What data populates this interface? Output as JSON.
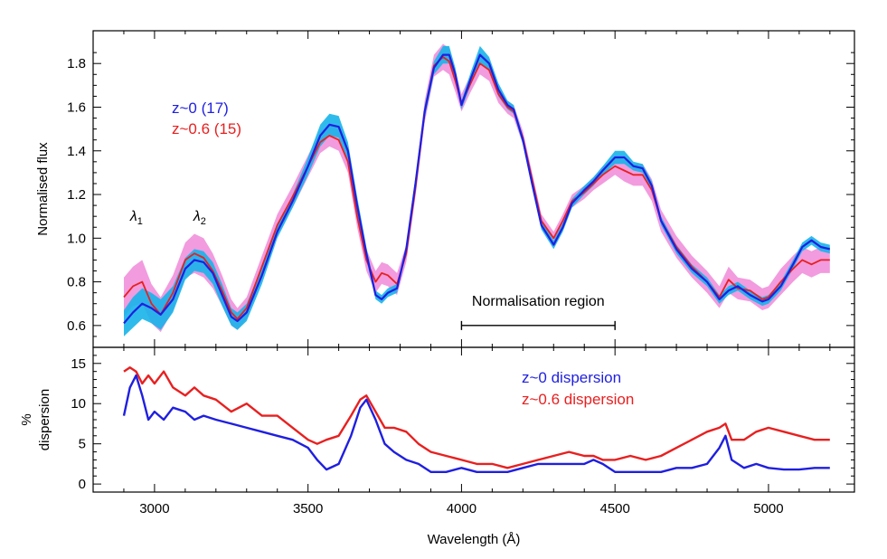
{
  "chart_data": [
    {
      "type": "line",
      "panel": "top",
      "ylabel": "Normalised flux",
      "xlim": [
        2800,
        5280
      ],
      "ylim": [
        0.5,
        1.95
      ],
      "x_ticks": [
        3000,
        3500,
        4000,
        4500,
        5000
      ],
      "y_ticks": [
        0.6,
        0.8,
        1.0,
        1.2,
        1.4,
        1.6,
        1.8
      ],
      "y_tick_labels": [
        "0.6",
        "0.8",
        "1.0",
        "1.2",
        "1.4",
        "1.6",
        "1.8"
      ],
      "legend": [
        {
          "text": "z~0 (17)",
          "color": "#1f1fe0"
        },
        {
          "text": "z~0.6 (15)",
          "color": "#e82020"
        }
      ],
      "legend_position": "upper-left",
      "annotations": {
        "lambda1_symbol": "λ",
        "lambda1_sub": "1",
        "lambda2_symbol": "λ",
        "lambda2_sub": "2",
        "lambda1_x": 2950,
        "lambda2_x": 3150,
        "lambda_y": 1.1,
        "norm_region_label": "Normalisation region",
        "norm_region": [
          4000,
          4500
        ],
        "norm_region_y": 0.6
      },
      "series": [
        {
          "name": "z~0 (17)",
          "color": "#1f1fe0",
          "band_color": "#17b4ea",
          "x": [
            2900,
            2930,
            2960,
            2990,
            3020,
            3060,
            3100,
            3130,
            3160,
            3190,
            3220,
            3250,
            3270,
            3300,
            3350,
            3400,
            3450,
            3500,
            3540,
            3570,
            3600,
            3630,
            3660,
            3690,
            3720,
            3740,
            3760,
            3790,
            3820,
            3850,
            3880,
            3910,
            3940,
            3960,
            3980,
            4000,
            4030,
            4060,
            4090,
            4120,
            4150,
            4170,
            4200,
            4230,
            4260,
            4300,
            4330,
            4360,
            4400,
            4430,
            4460,
            4500,
            4530,
            4560,
            4590,
            4620,
            4650,
            4700,
            4750,
            4800,
            4840,
            4870,
            4900,
            4940,
            4980,
            5000,
            5040,
            5080,
            5110,
            5140,
            5170,
            5200
          ],
          "values": [
            0.61,
            0.66,
            0.7,
            0.68,
            0.65,
            0.72,
            0.86,
            0.9,
            0.89,
            0.84,
            0.74,
            0.64,
            0.62,
            0.66,
            0.83,
            1.03,
            1.17,
            1.33,
            1.47,
            1.52,
            1.51,
            1.4,
            1.15,
            0.93,
            0.74,
            0.72,
            0.75,
            0.77,
            0.95,
            1.25,
            1.58,
            1.78,
            1.84,
            1.84,
            1.75,
            1.61,
            1.73,
            1.84,
            1.8,
            1.68,
            1.61,
            1.59,
            1.45,
            1.25,
            1.06,
            0.97,
            1.05,
            1.16,
            1.22,
            1.26,
            1.31,
            1.37,
            1.37,
            1.33,
            1.32,
            1.24,
            1.08,
            0.95,
            0.86,
            0.8,
            0.72,
            0.76,
            0.78,
            0.74,
            0.71,
            0.72,
            0.78,
            0.88,
            0.96,
            0.99,
            0.96,
            0.95
          ],
          "band_halfwidth": [
            0.06,
            0.07,
            0.07,
            0.07,
            0.07,
            0.06,
            0.05,
            0.05,
            0.05,
            0.05,
            0.05,
            0.04,
            0.04,
            0.04,
            0.04,
            0.03,
            0.03,
            0.04,
            0.05,
            0.05,
            0.05,
            0.04,
            0.04,
            0.03,
            0.02,
            0.02,
            0.02,
            0.02,
            0.02,
            0.03,
            0.03,
            0.03,
            0.04,
            0.04,
            0.03,
            0.02,
            0.03,
            0.04,
            0.03,
            0.03,
            0.02,
            0.02,
            0.02,
            0.02,
            0.02,
            0.02,
            0.02,
            0.02,
            0.02,
            0.02,
            0.02,
            0.03,
            0.03,
            0.02,
            0.02,
            0.02,
            0.02,
            0.02,
            0.02,
            0.02,
            0.02,
            0.02,
            0.02,
            0.02,
            0.02,
            0.02,
            0.02,
            0.02,
            0.02,
            0.02,
            0.02,
            0.02
          ]
        },
        {
          "name": "z~0.6 (15)",
          "color": "#e82020",
          "band_color": "#f08ad8",
          "x": [
            2900,
            2930,
            2960,
            2990,
            3020,
            3060,
            3100,
            3130,
            3160,
            3190,
            3220,
            3250,
            3270,
            3300,
            3350,
            3400,
            3450,
            3500,
            3540,
            3570,
            3600,
            3630,
            3660,
            3690,
            3720,
            3740,
            3760,
            3790,
            3820,
            3850,
            3880,
            3910,
            3940,
            3960,
            3980,
            4000,
            4030,
            4060,
            4090,
            4120,
            4150,
            4170,
            4200,
            4230,
            4260,
            4300,
            4330,
            4360,
            4400,
            4430,
            4460,
            4500,
            4530,
            4560,
            4590,
            4620,
            4650,
            4700,
            4750,
            4800,
            4840,
            4870,
            4900,
            4940,
            4980,
            5000,
            5040,
            5080,
            5110,
            5140,
            5170,
            5200
          ],
          "values": [
            0.73,
            0.78,
            0.8,
            0.7,
            0.65,
            0.75,
            0.9,
            0.93,
            0.91,
            0.85,
            0.76,
            0.66,
            0.63,
            0.68,
            0.87,
            1.06,
            1.19,
            1.33,
            1.44,
            1.47,
            1.45,
            1.35,
            1.1,
            0.9,
            0.8,
            0.84,
            0.83,
            0.79,
            0.93,
            1.23,
            1.58,
            1.79,
            1.83,
            1.81,
            1.72,
            1.62,
            1.71,
            1.8,
            1.77,
            1.66,
            1.6,
            1.58,
            1.46,
            1.27,
            1.08,
            1.0,
            1.08,
            1.17,
            1.21,
            1.25,
            1.29,
            1.33,
            1.31,
            1.29,
            1.29,
            1.22,
            1.08,
            0.96,
            0.87,
            0.8,
            0.73,
            0.81,
            0.77,
            0.76,
            0.72,
            0.73,
            0.8,
            0.86,
            0.9,
            0.88,
            0.9,
            0.9
          ],
          "band_halfwidth": [
            0.09,
            0.09,
            0.1,
            0.09,
            0.08,
            0.08,
            0.08,
            0.09,
            0.09,
            0.08,
            0.07,
            0.06,
            0.05,
            0.05,
            0.05,
            0.05,
            0.05,
            0.05,
            0.05,
            0.05,
            0.05,
            0.05,
            0.05,
            0.05,
            0.05,
            0.05,
            0.05,
            0.05,
            0.04,
            0.04,
            0.05,
            0.05,
            0.06,
            0.06,
            0.05,
            0.04,
            0.04,
            0.05,
            0.05,
            0.04,
            0.03,
            0.03,
            0.03,
            0.03,
            0.03,
            0.03,
            0.03,
            0.03,
            0.03,
            0.03,
            0.04,
            0.04,
            0.05,
            0.05,
            0.05,
            0.05,
            0.05,
            0.05,
            0.05,
            0.05,
            0.05,
            0.06,
            0.05,
            0.05,
            0.05,
            0.05,
            0.06,
            0.06,
            0.06,
            0.06,
            0.06,
            0.06
          ]
        }
      ]
    },
    {
      "type": "line",
      "panel": "bottom",
      "xlabel": "Wavelength (Å)",
      "ylabel_line1": "%",
      "ylabel_line2": "dispersion",
      "xlim": [
        2800,
        5280
      ],
      "ylim": [
        -1,
        17
      ],
      "x_ticks": [
        3000,
        3500,
        4000,
        4500,
        5000
      ],
      "x_tick_labels": [
        "3000",
        "3500",
        "4000",
        "4500",
        "5000"
      ],
      "y_ticks": [
        0,
        5,
        10,
        15
      ],
      "y_tick_labels": [
        "0",
        "5",
        "10",
        "15"
      ],
      "legend": [
        {
          "text": "z~0 dispersion",
          "color": "#1f1fe0"
        },
        {
          "text": "z~0.6 dispersion",
          "color": "#e82020"
        }
      ],
      "legend_position": "upper-right",
      "series": [
        {
          "name": "z~0 dispersion",
          "color": "#1f1fe0",
          "x": [
            2900,
            2920,
            2940,
            2960,
            2980,
            3000,
            3030,
            3060,
            3100,
            3130,
            3160,
            3200,
            3250,
            3300,
            3350,
            3400,
            3450,
            3500,
            3530,
            3560,
            3600,
            3640,
            3670,
            3690,
            3720,
            3750,
            3780,
            3820,
            3860,
            3900,
            3950,
            4000,
            4050,
            4100,
            4150,
            4200,
            4250,
            4300,
            4350,
            4400,
            4430,
            4460,
            4500,
            4550,
            4600,
            4650,
            4700,
            4750,
            4800,
            4840,
            4860,
            4880,
            4920,
            4960,
            5000,
            5050,
            5100,
            5150,
            5200
          ],
          "values": [
            8.5,
            12.0,
            13.5,
            11.0,
            8.0,
            9.0,
            8.0,
            9.5,
            9.0,
            8.0,
            8.5,
            8.0,
            7.5,
            7.0,
            6.5,
            6.0,
            5.5,
            4.5,
            3.0,
            1.8,
            2.5,
            6.0,
            9.5,
            10.5,
            8.0,
            5.0,
            4.0,
            3.0,
            2.5,
            1.5,
            1.5,
            2.0,
            1.5,
            1.5,
            1.5,
            2.0,
            2.5,
            2.5,
            2.5,
            2.5,
            3.0,
            2.5,
            1.5,
            1.5,
            1.5,
            1.5,
            2.0,
            2.0,
            2.5,
            4.5,
            6.0,
            3.0,
            2.0,
            2.5,
            2.0,
            1.8,
            1.8,
            2.0,
            2.0
          ]
        },
        {
          "name": "z~0.6 dispersion",
          "color": "#e82020",
          "x": [
            2900,
            2920,
            2940,
            2960,
            2980,
            3000,
            3030,
            3060,
            3100,
            3130,
            3160,
            3200,
            3250,
            3300,
            3350,
            3400,
            3450,
            3500,
            3530,
            3560,
            3600,
            3640,
            3670,
            3690,
            3720,
            3750,
            3780,
            3820,
            3860,
            3900,
            3950,
            4000,
            4050,
            4100,
            4150,
            4200,
            4250,
            4300,
            4350,
            4400,
            4430,
            4460,
            4500,
            4550,
            4600,
            4650,
            4700,
            4750,
            4800,
            4840,
            4860,
            4880,
            4920,
            4960,
            5000,
            5050,
            5100,
            5150,
            5200
          ],
          "values": [
            14.0,
            14.5,
            14.0,
            12.5,
            13.5,
            12.5,
            14.0,
            12.0,
            11.0,
            12.0,
            11.0,
            10.5,
            9.0,
            10.0,
            8.5,
            8.5,
            7.0,
            5.5,
            5.0,
            5.5,
            6.0,
            8.5,
            10.5,
            11.0,
            9.0,
            7.0,
            7.0,
            6.5,
            5.0,
            4.0,
            3.5,
            3.0,
            2.5,
            2.5,
            2.0,
            2.5,
            3.0,
            3.5,
            4.0,
            3.5,
            3.5,
            3.0,
            3.0,
            3.5,
            3.0,
            3.5,
            4.5,
            5.5,
            6.5,
            7.0,
            7.5,
            5.5,
            5.5,
            6.5,
            7.0,
            6.5,
            6.0,
            5.5,
            5.5
          ]
        }
      ]
    }
  ]
}
